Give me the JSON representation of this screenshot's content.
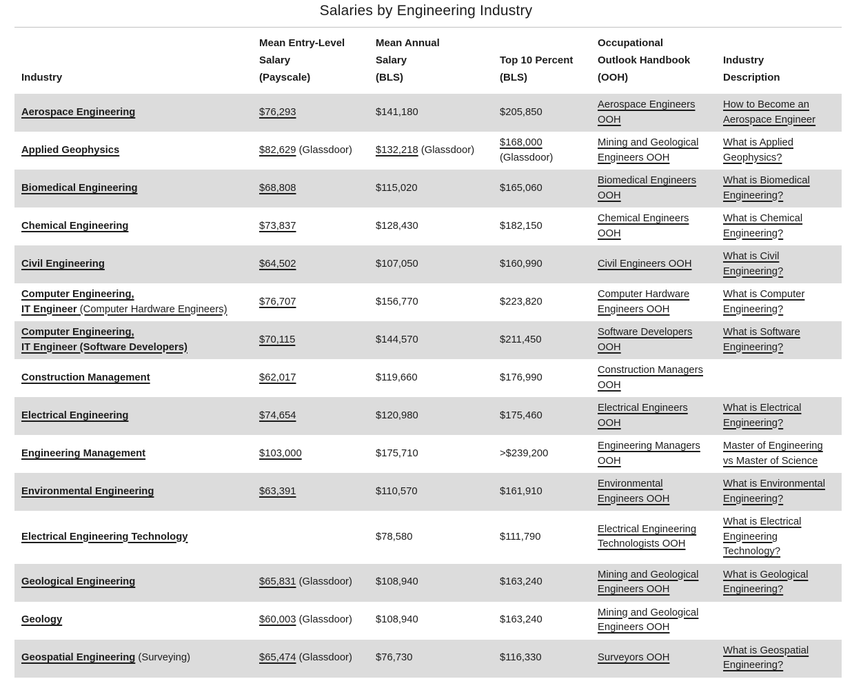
{
  "title": "Salaries by Engineering Industry",
  "table": {
    "columns": [
      {
        "label": "Industry"
      },
      {
        "label": "Mean Entry-Level\nSalary\n(Payscale)"
      },
      {
        "label": "Mean Annual\nSalary\n(BLS)"
      },
      {
        "label": "Top 10 Percent\n(BLS)"
      },
      {
        "label": "Occupational\nOutlook Handbook\n(OOH)"
      },
      {
        "label": "Industry\nDescription"
      }
    ],
    "rows": [
      {
        "shaded": true,
        "cells": [
          {
            "parts": [
              {
                "t": "Aerospace Engineering",
                "link": true,
                "bold": true
              }
            ]
          },
          {
            "parts": [
              {
                "t": "$76,293",
                "link": true
              }
            ]
          },
          {
            "parts": [
              {
                "t": "$141,180"
              }
            ]
          },
          {
            "parts": [
              {
                "t": "$205,850"
              }
            ]
          },
          {
            "parts": [
              {
                "t": "Aerospace Engineers OOH",
                "link": true
              }
            ]
          },
          {
            "parts": [
              {
                "t": "How to Become an Aerospace Engineer",
                "link": true
              }
            ]
          }
        ]
      },
      {
        "shaded": false,
        "cells": [
          {
            "parts": [
              {
                "t": "Applied Geophysics",
                "link": true,
                "bold": true
              }
            ]
          },
          {
            "parts": [
              {
                "t": "$82,629",
                "link": true
              },
              {
                "t": " (Glassdoor)"
              }
            ]
          },
          {
            "parts": [
              {
                "t": "$132,218",
                "link": true
              },
              {
                "t": " (Glassdoor)"
              }
            ]
          },
          {
            "parts": [
              {
                "t": "$168,000",
                "link": true
              },
              {
                "t": " (Glassdoor)"
              }
            ]
          },
          {
            "parts": [
              {
                "t": "Mining and Geological Engineers OOH",
                "link": true
              }
            ]
          },
          {
            "parts": [
              {
                "t": "What is Applied Geophysics?",
                "link": true
              }
            ]
          }
        ]
      },
      {
        "shaded": true,
        "cells": [
          {
            "parts": [
              {
                "t": "Biomedical Engineering",
                "link": true,
                "bold": true
              }
            ]
          },
          {
            "parts": [
              {
                "t": "$68,808",
                "link": true
              }
            ]
          },
          {
            "parts": [
              {
                "t": "$115,020"
              }
            ]
          },
          {
            "parts": [
              {
                "t": "$165,060"
              }
            ]
          },
          {
            "parts": [
              {
                "t": "Biomedical Engineers OOH",
                "link": true
              }
            ]
          },
          {
            "parts": [
              {
                "t": "What is Biomedical Engineering?",
                "link": true
              }
            ]
          }
        ]
      },
      {
        "shaded": false,
        "cells": [
          {
            "parts": [
              {
                "t": "Chemical Engineering",
                "link": true,
                "bold": true
              }
            ]
          },
          {
            "parts": [
              {
                "t": "$73,837",
                "link": true
              }
            ]
          },
          {
            "parts": [
              {
                "t": "$128,430"
              }
            ]
          },
          {
            "parts": [
              {
                "t": "$182,150"
              }
            ]
          },
          {
            "parts": [
              {
                "t": "Chemical Engineers OOH",
                "link": true
              }
            ]
          },
          {
            "parts": [
              {
                "t": "What is Chemical Engineering?",
                "link": true
              }
            ]
          }
        ]
      },
      {
        "shaded": true,
        "cells": [
          {
            "parts": [
              {
                "t": "Civil Engineering",
                "link": true,
                "bold": true
              }
            ]
          },
          {
            "parts": [
              {
                "t": "$64,502",
                "link": true
              }
            ]
          },
          {
            "parts": [
              {
                "t": "$107,050"
              }
            ]
          },
          {
            "parts": [
              {
                "t": "$160,990"
              }
            ]
          },
          {
            "parts": [
              {
                "t": "Civil Engineers OOH",
                "link": true
              }
            ]
          },
          {
            "parts": [
              {
                "t": "What is Civil Engineering?",
                "link": true
              }
            ]
          }
        ]
      },
      {
        "shaded": false,
        "cells": [
          {
            "parts": [
              {
                "t": "Computer Engineering,\nIT Engineer",
                "link": true,
                "bold": true
              },
              {
                "t": " (Computer Hardware Engineers)",
                "link": true
              }
            ]
          },
          {
            "parts": [
              {
                "t": "$76,707",
                "link": true
              }
            ]
          },
          {
            "parts": [
              {
                "t": "$156,770"
              }
            ]
          },
          {
            "parts": [
              {
                "t": "$223,820"
              }
            ]
          },
          {
            "parts": [
              {
                "t": "Computer Hardware Engineers OOH",
                "link": true
              }
            ]
          },
          {
            "parts": [
              {
                "t": "What is Computer Engineering?",
                "link": true
              }
            ]
          }
        ]
      },
      {
        "shaded": true,
        "cells": [
          {
            "parts": [
              {
                "t": "Computer Engineering,\nIT Engineer (Software Developers)",
                "link": true,
                "bold": true
              }
            ]
          },
          {
            "parts": [
              {
                "t": "$70,115",
                "link": true
              }
            ]
          },
          {
            "parts": [
              {
                "t": "$144,570"
              }
            ]
          },
          {
            "parts": [
              {
                "t": "$211,450"
              }
            ]
          },
          {
            "parts": [
              {
                "t": "Software Developers OOH",
                "link": true
              }
            ]
          },
          {
            "parts": [
              {
                "t": "What is Software Engineering?",
                "link": true
              }
            ]
          }
        ]
      },
      {
        "shaded": false,
        "cells": [
          {
            "parts": [
              {
                "t": "Construction Management",
                "link": true,
                "bold": true
              }
            ]
          },
          {
            "parts": [
              {
                "t": "$62,017",
                "link": true
              }
            ]
          },
          {
            "parts": [
              {
                "t": "$119,660"
              }
            ]
          },
          {
            "parts": [
              {
                "t": "$176,990"
              }
            ]
          },
          {
            "parts": [
              {
                "t": "Construction Managers OOH",
                "link": true
              }
            ]
          },
          {
            "parts": []
          }
        ]
      },
      {
        "shaded": true,
        "cells": [
          {
            "parts": [
              {
                "t": "Electrical Engineering",
                "link": true,
                "bold": true
              }
            ]
          },
          {
            "parts": [
              {
                "t": "$74,654",
                "link": true
              }
            ]
          },
          {
            "parts": [
              {
                "t": "$120,980"
              }
            ]
          },
          {
            "parts": [
              {
                "t": "$175,460"
              }
            ]
          },
          {
            "parts": [
              {
                "t": "Electrical Engineers OOH",
                "link": true
              }
            ]
          },
          {
            "parts": [
              {
                "t": "What is Electrical Engineering?",
                "link": true
              }
            ]
          }
        ]
      },
      {
        "shaded": false,
        "cells": [
          {
            "parts": [
              {
                "t": "Engineering Management",
                "link": true,
                "bold": true
              }
            ]
          },
          {
            "parts": [
              {
                "t": "$103,000",
                "link": true
              }
            ]
          },
          {
            "parts": [
              {
                "t": "$175,710"
              }
            ]
          },
          {
            "parts": [
              {
                "t": ">$239,200"
              }
            ]
          },
          {
            "parts": [
              {
                "t": "Engineering Managers OOH",
                "link": true
              }
            ]
          },
          {
            "parts": [
              {
                "t": "Master of Engineering vs Master of Science",
                "link": true
              }
            ]
          }
        ]
      },
      {
        "shaded": true,
        "cells": [
          {
            "parts": [
              {
                "t": "Environmental Engineering",
                "link": true,
                "bold": true
              }
            ]
          },
          {
            "parts": [
              {
                "t": "$63,391",
                "link": true
              }
            ]
          },
          {
            "parts": [
              {
                "t": "$110,570"
              }
            ]
          },
          {
            "parts": [
              {
                "t": "$161,910"
              }
            ]
          },
          {
            "parts": [
              {
                "t": "Environmental Engineers OOH",
                "link": true
              }
            ]
          },
          {
            "parts": [
              {
                "t": "What is Environmental Engineering?",
                "link": true
              }
            ]
          }
        ]
      },
      {
        "shaded": false,
        "cells": [
          {
            "parts": [
              {
                "t": "Electrical Engineering Technology",
                "link": true,
                "bold": true
              }
            ]
          },
          {
            "parts": []
          },
          {
            "parts": [
              {
                "t": "$78,580"
              }
            ]
          },
          {
            "parts": [
              {
                "t": "$111,790"
              }
            ]
          },
          {
            "parts": [
              {
                "t": "Electrical Engineering Technologists OOH",
                "link": true
              }
            ]
          },
          {
            "parts": [
              {
                "t": "What is Electrical Engineering Technology?",
                "link": true
              }
            ]
          }
        ]
      },
      {
        "shaded": true,
        "cells": [
          {
            "parts": [
              {
                "t": "Geological Engineering",
                "link": true,
                "bold": true
              }
            ]
          },
          {
            "parts": [
              {
                "t": "$65,831",
                "link": true
              },
              {
                "t": " (Glassdoor)"
              }
            ]
          },
          {
            "parts": [
              {
                "t": "$108,940"
              }
            ]
          },
          {
            "parts": [
              {
                "t": "$163,240"
              }
            ]
          },
          {
            "parts": [
              {
                "t": "Mining and Geological Engineers OOH",
                "link": true
              }
            ]
          },
          {
            "parts": [
              {
                "t": "What is Geological Engineering?",
                "link": true
              }
            ]
          }
        ]
      },
      {
        "shaded": false,
        "cells": [
          {
            "parts": [
              {
                "t": "Geology",
                "link": true,
                "bold": true
              }
            ]
          },
          {
            "parts": [
              {
                "t": "$60,003",
                "link": true
              },
              {
                "t": " (Glassdoor)"
              }
            ]
          },
          {
            "parts": [
              {
                "t": "$108,940"
              }
            ]
          },
          {
            "parts": [
              {
                "t": "$163,240"
              }
            ]
          },
          {
            "parts": [
              {
                "t": "Mining and Geological Engineers OOH",
                "link": true
              }
            ]
          },
          {
            "parts": []
          }
        ]
      },
      {
        "shaded": true,
        "cells": [
          {
            "parts": [
              {
                "t": "Geospatial Engineering",
                "link": true,
                "bold": true
              },
              {
                "t": " (Surveying)"
              }
            ]
          },
          {
            "parts": [
              {
                "t": "$65,474",
                "link": true
              },
              {
                "t": " (Glassdoor)"
              }
            ]
          },
          {
            "parts": [
              {
                "t": "$76,730"
              }
            ]
          },
          {
            "parts": [
              {
                "t": "$116,330"
              }
            ]
          },
          {
            "parts": [
              {
                "t": "Surveyors OOH",
                "link": true
              }
            ]
          },
          {
            "parts": [
              {
                "t": "What is Geospatial Engineering?",
                "link": true
              }
            ]
          }
        ]
      }
    ]
  }
}
